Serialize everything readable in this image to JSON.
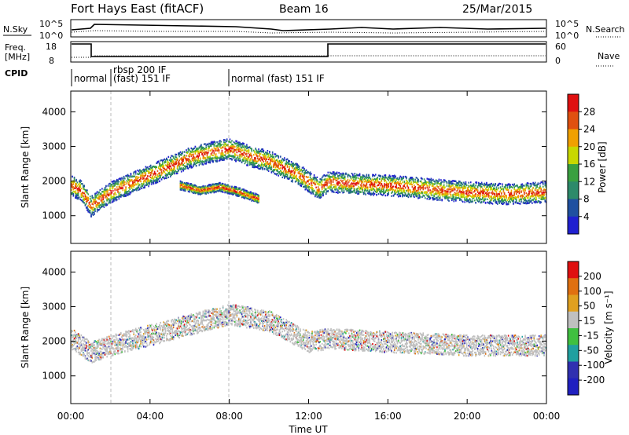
{
  "header": {
    "station": "Fort Hays East (fitACF)",
    "beam": "Beam 16",
    "date": "25/Mar/2015"
  },
  "noise_panel": {
    "left_label": "N.Sky",
    "right_label": "N.Search",
    "ticks": [
      "10^5",
      "10^0"
    ]
  },
  "freq_panel": {
    "left_label_1": "Freq.",
    "left_label_2": "[MHz]",
    "right_label": "Nave",
    "left_ticks": [
      "18",
      "8"
    ],
    "right_ticks": [
      "60",
      "0"
    ]
  },
  "cpid": {
    "label": "CPID",
    "segments": [
      {
        "text_1": "normal",
        "text_2": ""
      },
      {
        "text_1": "rbsp 200 IF",
        "text_2": "(fast) 151 IF"
      },
      {
        "text_1": "normal (fast) 151 IF",
        "text_2": ""
      }
    ]
  },
  "power_panel": {
    "ylabel": "Slant Range [km]",
    "colorbar_label": "Power [dB]",
    "colorbar_ticks": [
      "28",
      "24",
      "20",
      "16",
      "12",
      "8",
      "4"
    ]
  },
  "velocity_panel": {
    "ylabel": "Slant Range [km]",
    "colorbar_label": "Velocity [m s⁻¹]",
    "colorbar_ticks": [
      "200",
      "100",
      "50",
      "15",
      "-15",
      "-50",
      "-100",
      "-200"
    ]
  },
  "x_axis": {
    "label": "Time UT",
    "ticks": [
      "00:00",
      "04:00",
      "08:00",
      "12:00",
      "16:00",
      "20:00",
      "00:00"
    ]
  },
  "colors": {
    "power_scale": [
      "#2020d0",
      "#2050a0",
      "#2d8a6a",
      "#3aa040",
      "#c8d800",
      "#f0a000",
      "#e05010",
      "#e01010"
    ],
    "velocity_scale": [
      "#2020c0",
      "#3030b0",
      "#20a0a0",
      "#40c040",
      "#c0c0c0",
      "#e0a020",
      "#e07010",
      "#e01010"
    ]
  },
  "chart_data": [
    {
      "type": "heatmap",
      "panel": "power",
      "xlabel": "Time UT",
      "ylabel": "Slant Range [km]",
      "x_range_hours": [
        0,
        24
      ],
      "ylim": [
        200,
        4600
      ],
      "yticks": [
        1000,
        2000,
        3000,
        4000
      ],
      "colorbar": {
        "label": "Power [dB]",
        "range": [
          0,
          30
        ]
      },
      "echo_bands": [
        {
          "name": "main",
          "points": [
            [
              0.0,
              1900
            ],
            [
              0.5,
              1750
            ],
            [
              1.0,
              1300
            ],
            [
              2.0,
              1700
            ],
            [
              3.0,
              1950
            ],
            [
              4.0,
              2200
            ],
            [
              5.0,
              2450
            ],
            [
              6.0,
              2700
            ],
            [
              7.0,
              2850
            ],
            [
              8.0,
              2950
            ],
            [
              9.0,
              2750
            ],
            [
              10.0,
              2600
            ],
            [
              11.5,
              2200
            ],
            [
              12.5,
              1800
            ],
            [
              13.0,
              2000
            ],
            [
              14.0,
              1950
            ],
            [
              16.0,
              1900
            ],
            [
              18.0,
              1800
            ],
            [
              20.0,
              1700
            ],
            [
              22.0,
              1650
            ],
            [
              24.0,
              1700
            ]
          ]
        },
        {
          "name": "lower",
          "points": [
            [
              5.5,
              1900
            ],
            [
              6.5,
              1750
            ],
            [
              7.5,
              1850
            ],
            [
              8.5,
              1700
            ],
            [
              9.5,
              1500
            ]
          ]
        }
      ]
    },
    {
      "type": "heatmap",
      "panel": "velocity",
      "xlabel": "Time UT",
      "ylabel": "Slant Range [km]",
      "x_range_hours": [
        0,
        24
      ],
      "ylim": [
        200,
        4600
      ],
      "yticks": [
        1000,
        2000,
        3000,
        4000
      ],
      "colorbar": {
        "label": "Velocity [m s⁻¹]",
        "range": [
          -200,
          200
        ]
      },
      "echo_bands": [
        {
          "name": "main",
          "points": [
            [
              0.0,
              2100
            ],
            [
              1.0,
              1700
            ],
            [
              2.0,
              1900
            ],
            [
              4.0,
              2200
            ],
            [
              6.0,
              2500
            ],
            [
              8.0,
              2800
            ],
            [
              10.0,
              2600
            ],
            [
              12.0,
              2000
            ],
            [
              13.0,
              2100
            ],
            [
              16.0,
              2000
            ],
            [
              20.0,
              1900
            ],
            [
              24.0,
              1900
            ]
          ]
        }
      ]
    }
  ]
}
